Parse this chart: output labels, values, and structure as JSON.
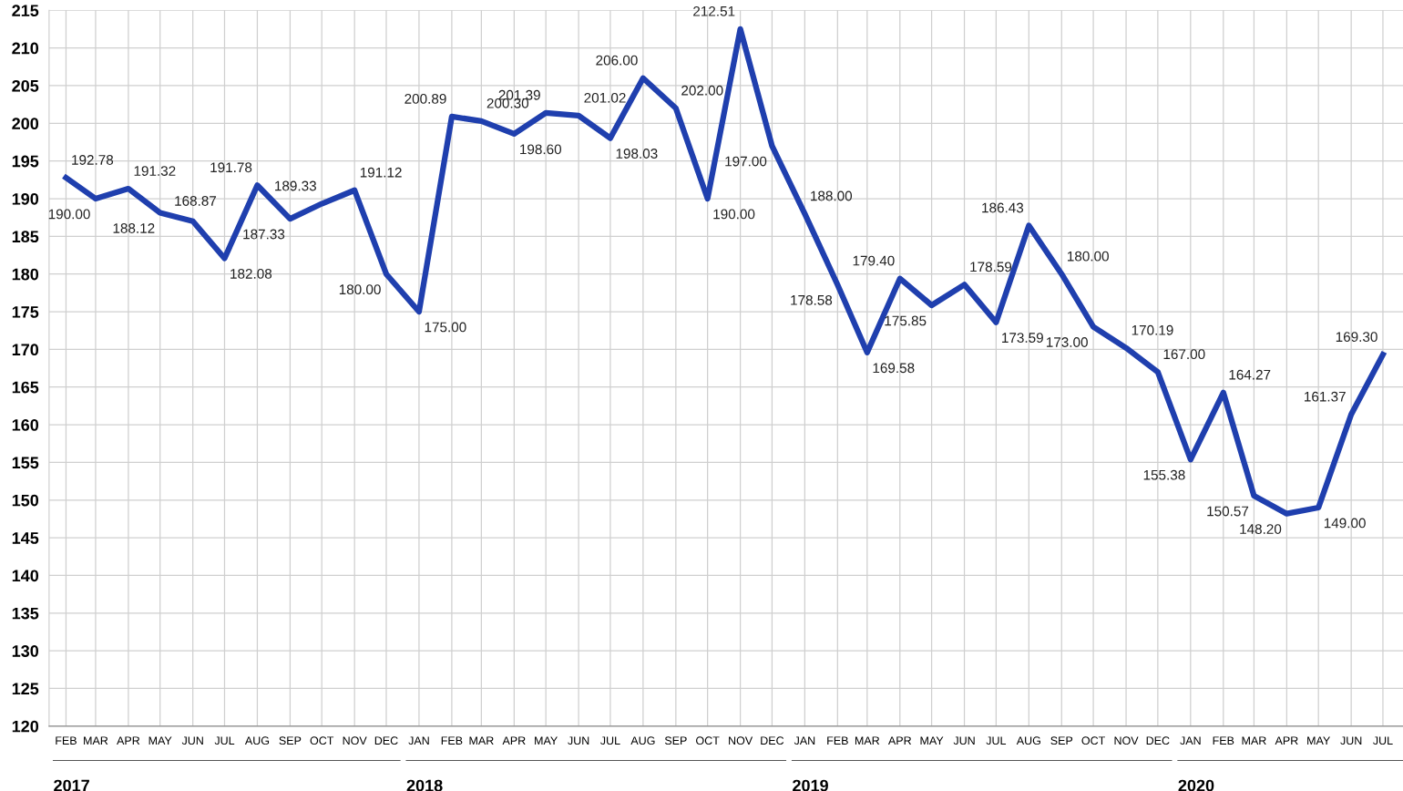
{
  "chart_data": {
    "type": "line",
    "color": "#1f3fae",
    "x": [
      "2017-02",
      "2017-03",
      "2017-04",
      "2017-05",
      "2017-06",
      "2017-07",
      "2017-08",
      "2017-09",
      "2017-10",
      "2017-11",
      "2017-12",
      "2018-01",
      "2018-02",
      "2018-03",
      "2018-04",
      "2018-05",
      "2018-06",
      "2018-07",
      "2018-08",
      "2018-09",
      "2018-10",
      "2018-11",
      "2018-12",
      "2019-01",
      "2019-02",
      "2019-03",
      "2019-04",
      "2019-05",
      "2019-06",
      "2019-07",
      "2019-08",
      "2019-09",
      "2019-10",
      "2019-11",
      "2019-12",
      "2020-01",
      "2020-02",
      "2020-03",
      "2020-04",
      "2020-05",
      "2020-06",
      "2020-07"
    ],
    "values": [
      192.78,
      190.0,
      191.32,
      188.12,
      187,
      182.08,
      191.78,
      187.33,
      189.33,
      191.12,
      180.0,
      175.0,
      200.89,
      200.3,
      198.6,
      201.39,
      201.02,
      198.03,
      206.0,
      202.0,
      190.0,
      212.51,
      197.0,
      188.0,
      178.58,
      169.58,
      179.4,
      175.85,
      178.59,
      173.59,
      186.43,
      180.0,
      173.0,
      170.19,
      167.0,
      155.38,
      164.27,
      150.57,
      148.2,
      149.0,
      161.37,
      169.3
    ],
    "value_labels": [
      "192.78",
      "190.00",
      "191.32",
      "188.12",
      null,
      "182.08",
      "191.78",
      "187.33",
      "189.33",
      "191.12",
      "180.00",
      "175.00",
      "200.89",
      "200.30",
      "198.60",
      "201.39",
      "201.02",
      "198.03",
      "206.00",
      "202.00",
      "190.00",
      "212.51",
      "197.00",
      "188.00",
      "178.58",
      "169.58",
      "179.40",
      "175.85",
      "178.59",
      "173.59",
      "186.43",
      "180.00",
      "173.00",
      "170.19",
      "167.00",
      "155.38",
      "164.27",
      "150.57",
      "148.20",
      "149.00",
      "161.37",
      "169.30"
    ],
    "xlim": [
      "2017-01-16",
      "2020-07-20"
    ],
    "xticks": [
      {
        "value": "2017-02",
        "label": "FEB"
      },
      {
        "value": "2017-03",
        "label": "MAR"
      },
      {
        "value": "2017-04",
        "label": "APR"
      },
      {
        "value": "2017-05",
        "label": "MAY"
      },
      {
        "value": "2017-06",
        "label": "JUN"
      },
      {
        "value": "2017-07",
        "label": "JUL"
      },
      {
        "value": "2017-08",
        "label": "AUG"
      },
      {
        "value": "2017-09",
        "label": "SEP"
      },
      {
        "value": "2017-10",
        "label": "OCT"
      },
      {
        "value": "2017-11",
        "label": "NOV"
      },
      {
        "value": "2017-12",
        "label": "DEC"
      },
      {
        "value": "2018-01",
        "label": "JAN"
      },
      {
        "value": "2018-02",
        "label": "FEB"
      },
      {
        "value": "2018-03",
        "label": "MAR"
      },
      {
        "value": "2018-04",
        "label": "APR"
      },
      {
        "value": "2018-05",
        "label": "MAY"
      },
      {
        "value": "2018-06",
        "label": "JUN"
      },
      {
        "value": "2018-07",
        "label": "JUL"
      },
      {
        "value": "2018-08",
        "label": "AUG"
      },
      {
        "value": "2018-09",
        "label": "SEP"
      },
      {
        "value": "2018-10",
        "label": "OCT"
      },
      {
        "value": "2018-11",
        "label": "NOV"
      },
      {
        "value": "2018-12",
        "label": "DEC"
      },
      {
        "value": "2019-01",
        "label": "JAN"
      },
      {
        "value": "2019-02",
        "label": "FEB"
      },
      {
        "value": "2019-03",
        "label": "MAR"
      },
      {
        "value": "2019-04",
        "label": "APR"
      },
      {
        "value": "2019-05",
        "label": "MAY"
      },
      {
        "value": "2019-06",
        "label": "JUN"
      },
      {
        "value": "2019-07",
        "label": "JUL"
      },
      {
        "value": "2019-08",
        "label": "AUG"
      },
      {
        "value": "2019-09",
        "label": "SEP"
      },
      {
        "value": "2019-10",
        "label": "OCT"
      },
      {
        "value": "2019-11",
        "label": "NOV"
      },
      {
        "value": "2019-12",
        "label": "DEC"
      },
      {
        "value": "2020-01",
        "label": "JAN"
      },
      {
        "value": "2020-02",
        "label": "FEB"
      },
      {
        "value": "2020-03",
        "label": "MAR"
      },
      {
        "value": "2020-04",
        "label": "APR"
      },
      {
        "value": "2020-05",
        "label": "MAY"
      },
      {
        "value": "2020-06",
        "label": "JUN"
      },
      {
        "value": "2020-07",
        "label": "JUL"
      }
    ],
    "ylim": [
      120,
      215
    ],
    "yticks": [
      120,
      125,
      130,
      135,
      140,
      145,
      150,
      155,
      160,
      165,
      170,
      175,
      180,
      185,
      190,
      195,
      200,
      205,
      210,
      215
    ],
    "annotations": [
      "2017",
      "2018",
      "2019",
      "2020",
      {
        "text": "168.87",
        "x": "2017-06",
        "y": 187
      }
    ],
    "grid": true,
    "marker": "none",
    "line_style": "solid",
    "legend": false
  }
}
